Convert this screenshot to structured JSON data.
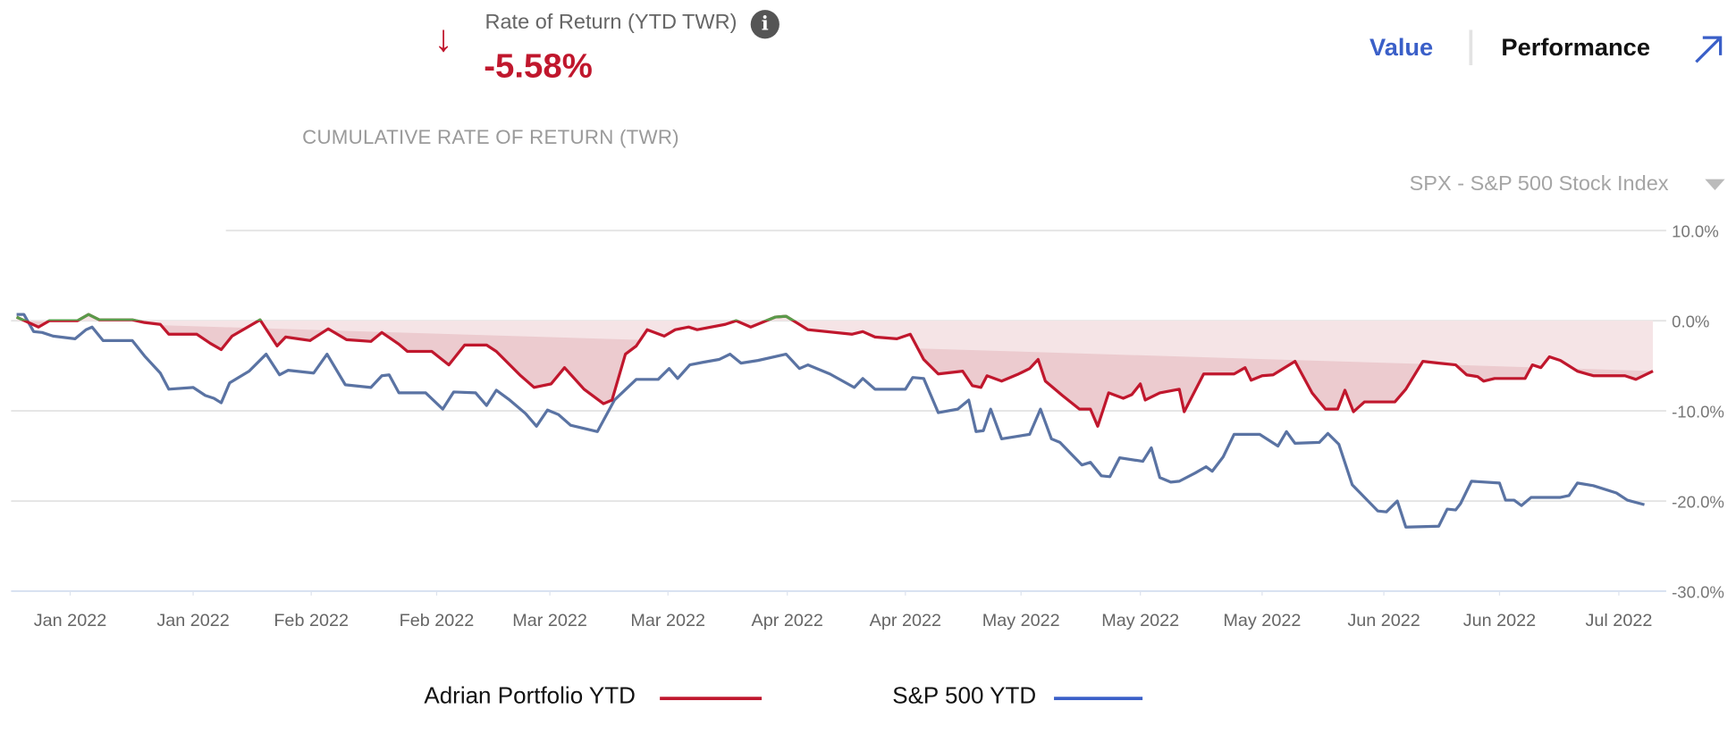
{
  "header": {
    "rate_label": "Rate of Return (YTD TWR)",
    "rate_value": "-5.58%",
    "down_arrow_glyph": "↓",
    "info_glyph": "i",
    "tabs": [
      "Value",
      "Performance"
    ],
    "expand_icon": "arrow-up-right-icon"
  },
  "colors": {
    "portfolio": "#c0172d",
    "benchmark": "#5a73a3",
    "positive": "#5a9a4a",
    "link": "#3a5fc8"
  },
  "benchmark_select": {
    "selected": "SPX - S&P 500 Stock Index"
  },
  "chart_data": {
    "type": "line",
    "title": "CUMULATIVE RATE OF RETURN (TWR)",
    "xlabel": "",
    "ylabel": "",
    "x_unit": "trading days since start of year",
    "xlim": [
      0,
      134.4
    ],
    "ylim": [
      -30,
      10
    ],
    "yticks": [
      10,
      0,
      -10,
      -20,
      -30
    ],
    "ytick_labels": [
      "10.0%",
      "0.0%",
      "-10.0%",
      "-20.0%",
      "-30.0%"
    ],
    "xticks": [
      4.4,
      14.5,
      24.2,
      34.5,
      43.8,
      53.5,
      63.3,
      73,
      82.5,
      92.3,
      102.3,
      112.3,
      121.8,
      131.6
    ],
    "xtick_labels": [
      "Jan 2022",
      "Jan 2022",
      "Feb 2022",
      "Feb 2022",
      "Mar 2022",
      "Mar 2022",
      "Apr 2022",
      "Apr 2022",
      "May 2022",
      "May 2022",
      "May 2022",
      "Jun 2022",
      "Jun 2022",
      "Jul 2022"
    ],
    "grid": true,
    "legend_position": "bottom-center",
    "series": [
      {
        "name": "Adrian Portfolio YTD",
        "color": "#c0172d",
        "points": [
          [
            0,
            0.4
          ],
          [
            1.8,
            -0.7
          ],
          [
            2.7,
            0
          ],
          [
            5,
            0
          ],
          [
            5.9,
            0.7
          ],
          [
            6.8,
            0.1
          ],
          [
            9.5,
            0.1
          ],
          [
            10.5,
            -0.2
          ],
          [
            11.8,
            -0.4
          ],
          [
            12.5,
            -1.5
          ],
          [
            14.8,
            -1.5
          ],
          [
            15.9,
            -2.5
          ],
          [
            16.8,
            -3.2
          ],
          [
            17.7,
            -1.7
          ],
          [
            20,
            0.1
          ],
          [
            21.4,
            -2.8
          ],
          [
            22.1,
            -1.8
          ],
          [
            24.1,
            -2.2
          ],
          [
            25.6,
            -0.9
          ],
          [
            27.1,
            -2.1
          ],
          [
            29.1,
            -2.3
          ],
          [
            30,
            -1.3
          ],
          [
            31.4,
            -2.6
          ],
          [
            32.1,
            -3.4
          ],
          [
            34.1,
            -3.4
          ],
          [
            35.5,
            -4.9
          ],
          [
            36.8,
            -2.7
          ],
          [
            38.6,
            -2.7
          ],
          [
            39.4,
            -3.4
          ],
          [
            41.4,
            -6.1
          ],
          [
            42.5,
            -7.4
          ],
          [
            43.9,
            -7.0
          ],
          [
            45,
            -5.2
          ],
          [
            46.6,
            -7.6
          ],
          [
            48.2,
            -9.2
          ],
          [
            48.9,
            -8.8
          ],
          [
            50,
            -3.7
          ],
          [
            50.9,
            -2.8
          ],
          [
            51.8,
            -1.0
          ],
          [
            53.2,
            -1.7
          ],
          [
            54.1,
            -1.0
          ],
          [
            55.2,
            -0.7
          ],
          [
            55.9,
            -1.0
          ],
          [
            58.2,
            -0.4
          ],
          [
            59.1,
            0
          ],
          [
            60.3,
            -0.7
          ],
          [
            62.3,
            0.4
          ],
          [
            63.2,
            0.5
          ],
          [
            65,
            -1.0
          ],
          [
            68.6,
            -1.5
          ],
          [
            69.5,
            -1.2
          ],
          [
            70.5,
            -1.8
          ],
          [
            72.3,
            -2.0
          ],
          [
            73.4,
            -1.5
          ],
          [
            74.5,
            -4.3
          ],
          [
            75.7,
            -5.9
          ],
          [
            77.7,
            -5.6
          ],
          [
            78.5,
            -7.2
          ],
          [
            79.2,
            -7.4
          ],
          [
            79.7,
            -6.1
          ],
          [
            80.9,
            -6.7
          ],
          [
            82.3,
            -5.9
          ],
          [
            83.2,
            -5.3
          ],
          [
            83.9,
            -4.3
          ],
          [
            84.5,
            -6.7
          ],
          [
            85.9,
            -8.3
          ],
          [
            87.3,
            -9.8
          ],
          [
            88.2,
            -9.8
          ],
          [
            88.8,
            -11.7
          ],
          [
            89.7,
            -8.0
          ],
          [
            90.9,
            -8.6
          ],
          [
            91.6,
            -8.2
          ],
          [
            92.3,
            -7.0
          ],
          [
            92.7,
            -8.8
          ],
          [
            93.9,
            -8.0
          ],
          [
            95.5,
            -7.6
          ],
          [
            95.9,
            -10.1
          ],
          [
            97.5,
            -5.9
          ],
          [
            100,
            -5.9
          ],
          [
            100.9,
            -5.2
          ],
          [
            101.4,
            -6.6
          ],
          [
            102.3,
            -6.1
          ],
          [
            103.2,
            -6.0
          ],
          [
            105,
            -4.5
          ],
          [
            106.4,
            -8.0
          ],
          [
            107.5,
            -9.8
          ],
          [
            108.5,
            -9.8
          ],
          [
            109.1,
            -7.7
          ],
          [
            109.8,
            -10.1
          ],
          [
            110.7,
            -9.0
          ],
          [
            113.2,
            -9.0
          ],
          [
            114.1,
            -7.6
          ],
          [
            115.5,
            -4.5
          ],
          [
            116.8,
            -4.7
          ],
          [
            118.2,
            -4.9
          ],
          [
            119.1,
            -6.0
          ],
          [
            120,
            -6.2
          ],
          [
            120.5,
            -6.7
          ],
          [
            121.4,
            -6.4
          ],
          [
            123.9,
            -6.4
          ],
          [
            124.5,
            -4.9
          ],
          [
            125.2,
            -5.2
          ],
          [
            125.9,
            -4.0
          ],
          [
            126.8,
            -4.4
          ],
          [
            128.2,
            -5.6
          ],
          [
            129.5,
            -6.1
          ],
          [
            132.1,
            -6.1
          ],
          [
            133,
            -6.5
          ],
          [
            134.4,
            -5.58
          ]
        ]
      },
      {
        "name": "S&P 500 YTD",
        "color": "#5a73a3",
        "points": [
          [
            0,
            0.7
          ],
          [
            0.6,
            0.7
          ],
          [
            1.4,
            -1.2
          ],
          [
            2.1,
            -1.3
          ],
          [
            3,
            -1.7
          ],
          [
            4.8,
            -2.0
          ],
          [
            5.7,
            -1.0
          ],
          [
            6.2,
            -0.7
          ],
          [
            7.1,
            -2.2
          ],
          [
            9.5,
            -2.2
          ],
          [
            10.5,
            -3.9
          ],
          [
            11.8,
            -5.8
          ],
          [
            12.5,
            -7.6
          ],
          [
            14.5,
            -7.4
          ],
          [
            15.5,
            -8.3
          ],
          [
            16.2,
            -8.6
          ],
          [
            16.8,
            -9.1
          ],
          [
            17.5,
            -6.9
          ],
          [
            19.1,
            -5.6
          ],
          [
            20.5,
            -3.7
          ],
          [
            21.6,
            -6.0
          ],
          [
            22.3,
            -5.5
          ],
          [
            24.4,
            -5.8
          ],
          [
            25.5,
            -3.7
          ],
          [
            27,
            -7.1
          ],
          [
            29.1,
            -7.4
          ],
          [
            30,
            -6.1
          ],
          [
            30.6,
            -6.0
          ],
          [
            31.4,
            -8.0
          ],
          [
            33.6,
            -8.0
          ],
          [
            35,
            -9.8
          ],
          [
            35.9,
            -7.9
          ],
          [
            37.7,
            -8.0
          ],
          [
            38.6,
            -9.4
          ],
          [
            39.4,
            -7.7
          ],
          [
            40.5,
            -8.8
          ],
          [
            41.8,
            -10.3
          ],
          [
            42.7,
            -11.7
          ],
          [
            43.6,
            -9.9
          ],
          [
            44.5,
            -10.4
          ],
          [
            45.5,
            -11.6
          ],
          [
            47.7,
            -12.3
          ],
          [
            49.1,
            -8.8
          ],
          [
            50.9,
            -6.5
          ],
          [
            52.7,
            -6.5
          ],
          [
            53.6,
            -5.3
          ],
          [
            54.3,
            -6.4
          ],
          [
            55.3,
            -4.9
          ],
          [
            56.4,
            -4.6
          ],
          [
            57.7,
            -4.3
          ],
          [
            58.6,
            -3.7
          ],
          [
            59.5,
            -4.7
          ],
          [
            60.9,
            -4.4
          ],
          [
            63.2,
            -3.7
          ],
          [
            64.3,
            -5.3
          ],
          [
            65,
            -4.9
          ],
          [
            66.8,
            -5.9
          ],
          [
            68.8,
            -7.4
          ],
          [
            69.5,
            -6.4
          ],
          [
            70.5,
            -7.6
          ],
          [
            73,
            -7.6
          ],
          [
            73.6,
            -6.3
          ],
          [
            74.5,
            -6.4
          ],
          [
            75.7,
            -10.2
          ],
          [
            77.3,
            -9.8
          ],
          [
            78.2,
            -8.8
          ],
          [
            78.8,
            -12.3
          ],
          [
            79.4,
            -12.2
          ],
          [
            80,
            -9.8
          ],
          [
            80.9,
            -13.1
          ],
          [
            83.2,
            -12.6
          ],
          [
            84.1,
            -9.8
          ],
          [
            85,
            -13.1
          ],
          [
            85.7,
            -13.5
          ],
          [
            87.5,
            -16.0
          ],
          [
            88.2,
            -15.7
          ],
          [
            89.1,
            -17.2
          ],
          [
            89.8,
            -17.3
          ],
          [
            90.6,
            -15.2
          ],
          [
            92.5,
            -15.6
          ],
          [
            93.2,
            -14.1
          ],
          [
            93.9,
            -17.4
          ],
          [
            94.8,
            -17.9
          ],
          [
            95.5,
            -17.8
          ],
          [
            96.8,
            -16.9
          ],
          [
            97.7,
            -16.2
          ],
          [
            98.2,
            -16.7
          ],
          [
            99.1,
            -15.1
          ],
          [
            100,
            -12.6
          ],
          [
            102.1,
            -12.6
          ],
          [
            103.6,
            -13.9
          ],
          [
            104.3,
            -12.3
          ],
          [
            105,
            -13.6
          ],
          [
            107,
            -13.5
          ],
          [
            107.7,
            -12.5
          ],
          [
            108.6,
            -13.7
          ],
          [
            109.7,
            -18.2
          ],
          [
            111.8,
            -21.1
          ],
          [
            112.5,
            -21.2
          ],
          [
            113.4,
            -20.0
          ],
          [
            114.1,
            -22.9
          ],
          [
            116.8,
            -22.8
          ],
          [
            117.5,
            -20.9
          ],
          [
            118.2,
            -21.0
          ],
          [
            118.6,
            -20.3
          ],
          [
            119.5,
            -17.8
          ],
          [
            121.8,
            -18.0
          ],
          [
            122.3,
            -19.9
          ],
          [
            123,
            -19.9
          ],
          [
            123.6,
            -20.5
          ],
          [
            124.4,
            -19.6
          ],
          [
            126.8,
            -19.6
          ],
          [
            127.5,
            -19.4
          ],
          [
            128.2,
            -18.0
          ],
          [
            129.5,
            -18.3
          ],
          [
            131.4,
            -19.1
          ],
          [
            132.3,
            -19.9
          ],
          [
            133.7,
            -20.4
          ]
        ]
      }
    ]
  }
}
